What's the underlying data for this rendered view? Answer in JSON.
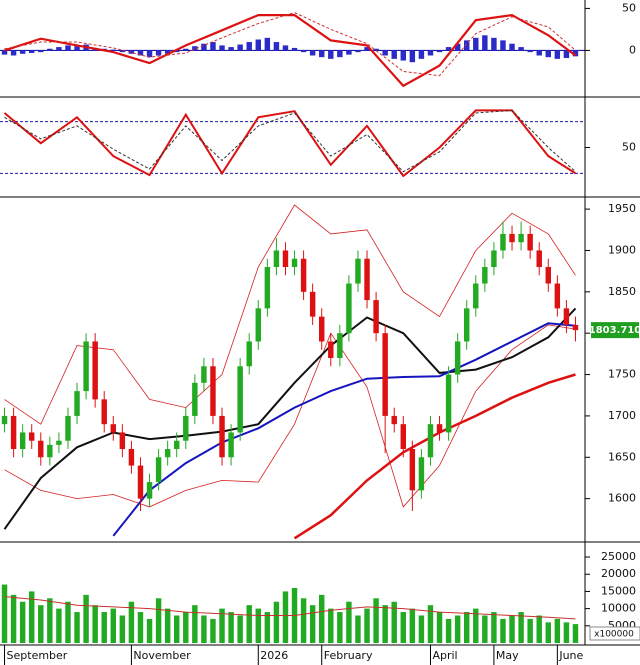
{
  "chart_data": [
    {
      "type": "macd",
      "xlim": [
        -0.5,
        63.5
      ],
      "ylim": [
        -53,
        60
      ],
      "yticks": [
        0,
        50
      ],
      "baseline": 0,
      "baseline_color": "#1a1aa6",
      "histogram": {
        "color": "#2b2bc8",
        "values": [
          -5,
          -6,
          -4,
          -3,
          -2,
          2,
          4,
          6,
          5,
          7,
          3,
          2,
          1,
          -2,
          -4,
          -6,
          -8,
          -6,
          -4,
          -2,
          2,
          5,
          8,
          10,
          6,
          4,
          7,
          10,
          13,
          15,
          10,
          6,
          3,
          -2,
          -6,
          -8,
          -10,
          -8,
          -5,
          -2,
          4,
          2,
          -6,
          -10,
          -12,
          -14,
          -10,
          -6,
          -2,
          4,
          8,
          12,
          15,
          18,
          15,
          12,
          8,
          4,
          -2,
          -6,
          -8,
          -10,
          -9,
          -7
        ]
      },
      "overlays": [
        {
          "color": "#dd1111",
          "width": 2.2,
          "dash": false,
          "x": [
            0,
            4,
            8,
            12,
            16,
            20,
            24,
            28,
            32,
            36,
            40,
            44,
            48,
            52,
            56,
            60,
            63
          ],
          "values": [
            0,
            14,
            6,
            -2,
            -15,
            6,
            24,
            42,
            42,
            12,
            6,
            -42,
            -18,
            36,
            42,
            18,
            -6
          ]
        },
        {
          "color": "#cc3333",
          "width": 1,
          "dash": true,
          "x": [
            0,
            4,
            8,
            12,
            16,
            20,
            24,
            28,
            32,
            36,
            40,
            44,
            48,
            52,
            56,
            60,
            63
          ],
          "values": [
            2,
            10,
            10,
            3,
            -8,
            -3,
            15,
            32,
            45,
            25,
            8,
            -25,
            -30,
            20,
            40,
            28,
            0
          ]
        }
      ]
    },
    {
      "type": "stochastic",
      "xlim": [
        -0.5,
        63.5
      ],
      "ylim": [
        -5,
        105
      ],
      "yticks": [
        50
      ],
      "levels": [
        20,
        80
      ],
      "level_color": "#1a1aa6",
      "overlays": [
        {
          "color": "#dd1111",
          "width": 2,
          "dash": false,
          "x": [
            0,
            4,
            8,
            12,
            16,
            20,
            24,
            28,
            32,
            36,
            40,
            44,
            48,
            52,
            56,
            60,
            63
          ],
          "values": [
            90,
            55,
            85,
            40,
            18,
            88,
            20,
            85,
            92,
            30,
            75,
            17,
            50,
            93,
            93,
            40,
            20
          ]
        },
        {
          "color": "#333333",
          "width": 1,
          "dash": true,
          "x": [
            0,
            4,
            8,
            12,
            16,
            20,
            24,
            28,
            32,
            36,
            40,
            44,
            48,
            52,
            56,
            60,
            63
          ],
          "values": [
            85,
            60,
            75,
            48,
            25,
            75,
            35,
            75,
            90,
            40,
            65,
            22,
            45,
            90,
            93,
            50,
            22
          ]
        }
      ]
    },
    {
      "type": "candlestick",
      "xlim": [
        -0.5,
        63.5
      ],
      "ylim": [
        1550,
        1961
      ],
      "yticks": [
        1600,
        1650,
        1700,
        1750,
        1800,
        1850,
        1900,
        1950
      ],
      "up_color": "#22aa22",
      "down_color": "#dd1111",
      "open": [
        1690,
        1700,
        1660,
        1680,
        1670,
        1650,
        1665,
        1670,
        1700,
        1730,
        1790,
        1720,
        1690,
        1680,
        1660,
        1640,
        1600,
        1620,
        1650,
        1660,
        1670,
        1700,
        1740,
        1760,
        1700,
        1650,
        1680,
        1760,
        1790,
        1830,
        1880,
        1900,
        1880,
        1890,
        1850,
        1820,
        1790,
        1770,
        1800,
        1860,
        1890,
        1840,
        1800,
        1700,
        1690,
        1660,
        1610,
        1650,
        1690,
        1680,
        1750,
        1790,
        1830,
        1860,
        1880,
        1900,
        1920,
        1910,
        1920,
        1900,
        1880,
        1860,
        1830,
        1810
      ],
      "high": [
        1710,
        1710,
        1690,
        1690,
        1680,
        1675,
        1680,
        1710,
        1740,
        1800,
        1800,
        1730,
        1700,
        1690,
        1670,
        1650,
        1630,
        1660,
        1670,
        1680,
        1710,
        1750,
        1770,
        1770,
        1710,
        1690,
        1770,
        1800,
        1840,
        1890,
        1915,
        1910,
        1900,
        1900,
        1860,
        1830,
        1800,
        1810,
        1870,
        1900,
        1900,
        1850,
        1810,
        1710,
        1700,
        1670,
        1660,
        1700,
        1700,
        1760,
        1800,
        1840,
        1870,
        1890,
        1910,
        1935,
        1930,
        1935,
        1930,
        1910,
        1890,
        1870,
        1840,
        1820
      ],
      "low": [
        1680,
        1650,
        1650,
        1660,
        1640,
        1640,
        1655,
        1660,
        1690,
        1720,
        1710,
        1680,
        1670,
        1650,
        1630,
        1585,
        1590,
        1610,
        1640,
        1650,
        1660,
        1690,
        1730,
        1690,
        1640,
        1640,
        1670,
        1750,
        1780,
        1820,
        1870,
        1870,
        1870,
        1840,
        1810,
        1780,
        1760,
        1760,
        1790,
        1850,
        1830,
        1790,
        1655,
        1680,
        1650,
        1585,
        1600,
        1640,
        1670,
        1670,
        1740,
        1780,
        1820,
        1850,
        1870,
        1890,
        1900,
        1900,
        1890,
        1870,
        1850,
        1820,
        1800,
        1790
      ],
      "close": [
        1700,
        1660,
        1680,
        1670,
        1650,
        1665,
        1670,
        1700,
        1730,
        1790,
        1720,
        1690,
        1680,
        1660,
        1640,
        1600,
        1620,
        1650,
        1660,
        1670,
        1700,
        1740,
        1760,
        1700,
        1650,
        1680,
        1760,
        1790,
        1830,
        1880,
        1900,
        1880,
        1890,
        1850,
        1820,
        1790,
        1770,
        1800,
        1860,
        1890,
        1840,
        1800,
        1700,
        1690,
        1660,
        1610,
        1650,
        1690,
        1680,
        1750,
        1790,
        1830,
        1860,
        1880,
        1900,
        1920,
        1910,
        1920,
        1900,
        1880,
        1860,
        1830,
        1810,
        1803.71
      ],
      "last_value": 1803.71,
      "last_label": "1803.710",
      "last_color": "#1f9e1f",
      "overlays": [
        {
          "color": "#d42020",
          "width": 0.8,
          "dash": false,
          "x": [
            0,
            4,
            8,
            12,
            16,
            20,
            24,
            28,
            32,
            36,
            40,
            44,
            48,
            52,
            56,
            60,
            63
          ],
          "values": [
            1720,
            1690,
            1785,
            1780,
            1720,
            1710,
            1750,
            1880,
            1955,
            1920,
            1925,
            1850,
            1820,
            1900,
            1945,
            1920,
            1870
          ]
        },
        {
          "color": "#d42020",
          "width": 0.8,
          "dash": false,
          "x": [
            0,
            4,
            8,
            12,
            16,
            20,
            24,
            28,
            32,
            36,
            40,
            44,
            48,
            52,
            56,
            60,
            63
          ],
          "values": [
            1635,
            1610,
            1600,
            1605,
            1590,
            1610,
            1622,
            1620,
            1690,
            1800,
            1735,
            1590,
            1640,
            1730,
            1780,
            1810,
            1805
          ]
        },
        {
          "color": "#111111",
          "width": 2,
          "dash": false,
          "x": [
            0,
            4,
            8,
            12,
            16,
            20,
            24,
            28,
            32,
            36,
            40,
            44,
            48,
            52,
            56,
            60,
            63
          ],
          "values": [
            1563,
            1625,
            1662,
            1680,
            1672,
            1676,
            1681,
            1690,
            1740,
            1785,
            1819,
            1800,
            1752,
            1756,
            1771,
            1795,
            1830
          ]
        },
        {
          "color": "#1515c0",
          "width": 2,
          "dash": false,
          "x": [
            0,
            4,
            8,
            12,
            16,
            20,
            24,
            28,
            32,
            36,
            40,
            44,
            48,
            52,
            56,
            60,
            63
          ],
          "values": [
            null,
            null,
            null,
            1555,
            1610,
            1643,
            1668,
            1685,
            1710,
            1730,
            1745,
            1747,
            1748,
            1768,
            1790,
            1812,
            1809
          ]
        },
        {
          "color": "#dd1111",
          "width": 2.5,
          "dash": false,
          "x": [
            0,
            4,
            8,
            12,
            16,
            20,
            24,
            28,
            32,
            36,
            40,
            44,
            48,
            52,
            56,
            60,
            63
          ],
          "values": [
            null,
            null,
            null,
            null,
            null,
            null,
            null,
            null,
            1552,
            1580,
            1622,
            1656,
            1680,
            1700,
            1722,
            1740,
            1750
          ]
        }
      ]
    },
    {
      "type": "bar",
      "xlim": [
        -0.5,
        63.5
      ],
      "ylim": [
        0,
        28500
      ],
      "yticks": [
        5000,
        10000,
        15000,
        20000,
        25000
      ],
      "unit_label": "x100000",
      "color": "#22aa22",
      "values": [
        17000,
        14000,
        12000,
        15000,
        11000,
        13000,
        10000,
        12000,
        9000,
        14000,
        11000,
        9000,
        10000,
        8000,
        12000,
        9000,
        7000,
        13000,
        10000,
        8000,
        9000,
        11000,
        8000,
        7000,
        10000,
        9000,
        8000,
        11000,
        10000,
        9000,
        12000,
        15000,
        16000,
        13000,
        11000,
        14000,
        10000,
        9000,
        12000,
        8000,
        10000,
        13000,
        11000,
        12000,
        9000,
        10000,
        8000,
        11000,
        9000,
        7000,
        8000,
        9000,
        10000,
        8000,
        9000,
        7000,
        8000,
        9000,
        7000,
        8000,
        6000,
        7000,
        6000,
        5500
      ],
      "xticks": [
        {
          "value": 0,
          "label": "September"
        },
        {
          "value": 14,
          "label": "November"
        },
        {
          "value": 28,
          "label": "2026"
        },
        {
          "value": 35,
          "label": "February"
        },
        {
          "value": 47,
          "label": "April"
        },
        {
          "value": 54,
          "label": "May"
        },
        {
          "value": 61,
          "label": "June"
        }
      ],
      "overlays": [
        {
          "color": "#c83030",
          "width": 1,
          "dash": false,
          "x": [
            0,
            4,
            8,
            12,
            16,
            20,
            24,
            28,
            32,
            36,
            40,
            44,
            48,
            52,
            56,
            60,
            63
          ],
          "values": [
            13500,
            12500,
            11000,
            10500,
            10000,
            9000,
            8500,
            8000,
            8000,
            9500,
            10500,
            10000,
            9000,
            8500,
            8000,
            7500,
            7000
          ]
        }
      ]
    }
  ]
}
